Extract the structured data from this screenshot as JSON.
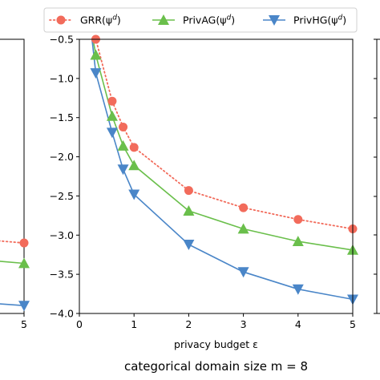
{
  "caption": "categorical domain size m = 8",
  "colors": {
    "grr": "#F26B5B",
    "ag": "#6ABF4B",
    "hg": "#4A86C8"
  },
  "chart_data": [
    {
      "type": "line",
      "panel": "main",
      "xlabel": "privacy budget ε",
      "ylabel": "",
      "xlim": [
        0,
        5
      ],
      "ylim": [
        -4.0,
        -0.5
      ],
      "xticks": [
        0,
        1,
        2,
        3,
        4,
        5
      ],
      "xtick_labels": [
        "0",
        "1",
        "2",
        "3",
        "4",
        "5"
      ],
      "yticks": [
        -0.5,
        -1.0,
        -1.5,
        -2.0,
        -2.5,
        -3.0,
        -3.5,
        -4.0
      ],
      "ytick_labels": [
        "−0.5",
        "−1.0",
        "−1.5",
        "−2.0",
        "−2.5",
        "−3.0",
        "−3.5",
        "−4.0"
      ],
      "grid": false,
      "legend_placement": "top",
      "series": [
        {
          "name": "GRR(ψ^d)",
          "name_main": "GRR(ψ",
          "name_sup": "d",
          "name_tail": ")",
          "color_key": "grr",
          "marker": "circle",
          "linestyle": "dotted",
          "x": [
            0.2,
            0.3,
            0.6,
            0.8,
            1,
            2,
            3,
            4,
            5
          ],
          "y": [
            -0.3,
            -0.5,
            -1.29,
            -1.62,
            -1.88,
            -2.43,
            -2.65,
            -2.8,
            -2.92
          ],
          "markers_x": [
            0.3,
            0.6,
            0.8,
            1,
            2,
            3,
            4,
            5
          ]
        },
        {
          "name": "PrivAG(ψ^d)",
          "name_main": "PrivAG(ψ",
          "name_sup": "d",
          "name_tail": ")",
          "color_key": "ag",
          "marker": "triangle-up",
          "linestyle": "solid",
          "x": [
            0.2,
            0.3,
            0.6,
            0.8,
            1,
            2,
            3,
            4,
            5
          ],
          "y": [
            -0.3,
            -0.7,
            -1.48,
            -1.86,
            -2.11,
            -2.69,
            -2.92,
            -3.08,
            -3.19
          ],
          "markers_x": [
            0.3,
            0.6,
            0.8,
            1,
            2,
            3,
            4,
            5
          ]
        },
        {
          "name": "PrivHG(ψ^d)",
          "name_main": "PrivHG(ψ",
          "name_sup": "d",
          "name_tail": ")",
          "color_key": "hg",
          "marker": "triangle-down",
          "linestyle": "solid",
          "x": [
            0.2,
            0.3,
            0.6,
            0.8,
            1,
            2,
            3,
            4,
            5
          ],
          "y": [
            -0.3,
            -0.93,
            -1.69,
            -2.16,
            -2.48,
            -3.12,
            -3.47,
            -3.69,
            -3.82
          ],
          "markers_x": [
            0.3,
            0.6,
            0.8,
            1,
            2,
            3,
            4,
            5
          ]
        }
      ]
    },
    {
      "type": "line",
      "panel": "left-partial",
      "xlim": [
        4,
        5
      ],
      "ylim": [
        -4.0,
        -0.5
      ],
      "xticks": [
        5
      ],
      "xtick_labels": [
        "5"
      ],
      "series": [
        {
          "color_key": "grr",
          "x": [
            4,
            5
          ],
          "y": [
            -3.04,
            -3.1
          ],
          "markers_x": [
            5
          ]
        },
        {
          "color_key": "ag",
          "x": [
            4,
            5
          ],
          "y": [
            -3.3,
            -3.36
          ],
          "markers_x": [
            5
          ]
        },
        {
          "color_key": "hg",
          "x": [
            4,
            5
          ],
          "y": [
            -3.85,
            -3.9
          ],
          "markers_x": [
            5
          ]
        }
      ]
    }
  ]
}
